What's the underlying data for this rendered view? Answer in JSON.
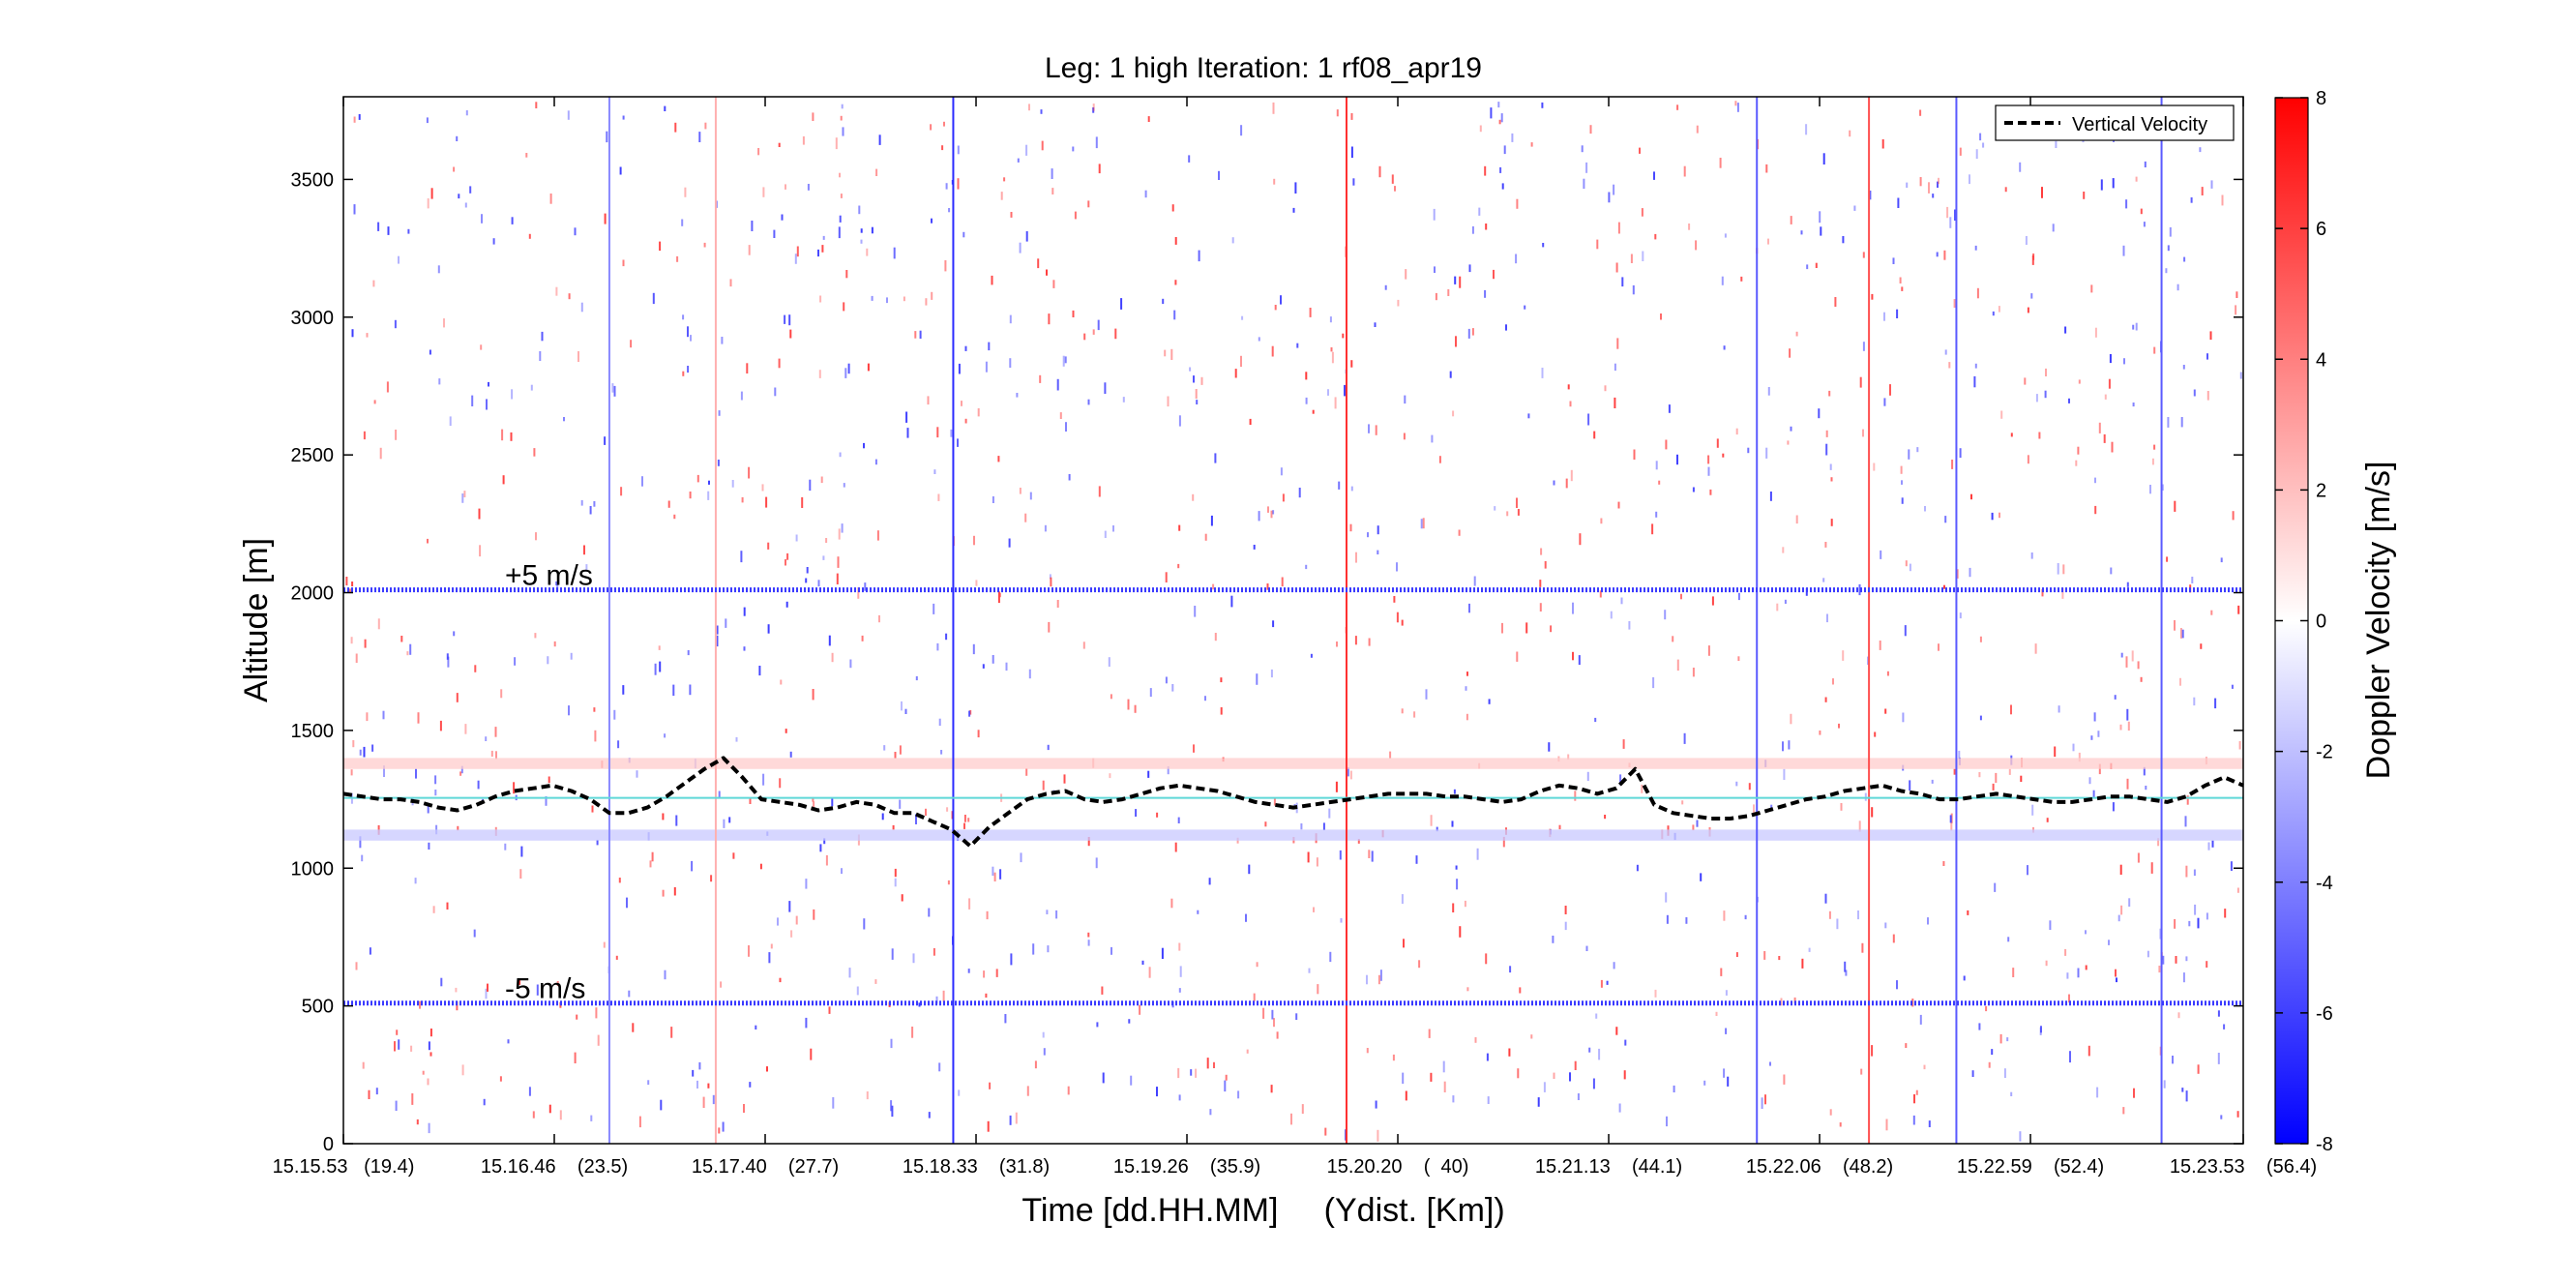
{
  "chart_data": {
    "type": "heatmap",
    "title": "Leg: 1 high Iteration: 1  rf08_apr19",
    "xlabel": "Time [dd.HH.MM]     (Ydist. [Km])",
    "ylabel": "Altitude [m]",
    "colorbar_label": "Doppler Velocity [m/s]",
    "ylim": [
      0,
      3800
    ],
    "xlim": [
      0,
      100
    ],
    "clim": [
      -8,
      8
    ],
    "colormap": {
      "low": "#0000ff",
      "mid": "#ffffff",
      "high": "#ff0000"
    },
    "yticks": [
      0,
      500,
      1000,
      1500,
      2000,
      2500,
      3000,
      3500
    ],
    "cticks": [
      -8,
      -6,
      -4,
      -2,
      0,
      2,
      4,
      6,
      8
    ],
    "xticks": [
      {
        "pos": 0,
        "label": "15.15.53   (19.4)"
      },
      {
        "pos": 11.1,
        "label": "15.16.46    (23.5)"
      },
      {
        "pos": 22.2,
        "label": "15.17.40    (27.7)"
      },
      {
        "pos": 33.3,
        "label": "15.18.33    (31.8)"
      },
      {
        "pos": 44.4,
        "label": "15.19.26    (35.9)"
      },
      {
        "pos": 55.5,
        "label": "15.20.20    (  40)"
      },
      {
        "pos": 66.6,
        "label": "15.21.13    (44.1)"
      },
      {
        "pos": 77.7,
        "label": "15.22.06    (48.2)"
      },
      {
        "pos": 88.8,
        "label": "15.22.59    (52.4)"
      },
      {
        "pos": 100,
        "label": "15.23.53    (56.4)"
      }
    ],
    "legend": {
      "placement": "top-right",
      "entries": [
        "Vertical Velocity"
      ]
    },
    "annotations": [
      {
        "text": "+5 m/s",
        "altitude": 2000
      },
      {
        "text": "-5 m/s",
        "altitude": 500
      }
    ],
    "reference_lines": [
      {
        "altitude": 2010,
        "color": "#3a3aff",
        "style": "dotted"
      },
      {
        "altitude": 510,
        "color": "#3a3aff",
        "style": "dotted"
      },
      {
        "altitude": 1255,
        "color": "#5fd8d8",
        "style": "solid"
      }
    ],
    "vertical_lines": [
      {
        "x": 14.0,
        "color": "#8a8aff"
      },
      {
        "x": 19.6,
        "color": "#ffb0b0"
      },
      {
        "x": 32.1,
        "color": "#2b2bff"
      },
      {
        "x": 52.8,
        "color": "#ff3030"
      },
      {
        "x": 74.4,
        "color": "#5a5aff"
      },
      {
        "x": 80.3,
        "color": "#ff5050"
      },
      {
        "x": 84.9,
        "color": "#5a5aff"
      },
      {
        "x": 95.7,
        "color": "#5a5aff"
      }
    ],
    "bands": [
      {
        "altitude_min": 1360,
        "altitude_max": 1400,
        "color": "#ffcccc"
      },
      {
        "altitude_min": 1100,
        "altitude_max": 1140,
        "color": "#c8c8ff"
      }
    ],
    "series": [
      {
        "name": "Vertical Velocity",
        "x": [
          0,
          1,
          2,
          3,
          4,
          5,
          6,
          7,
          8,
          9,
          10,
          11,
          12,
          13,
          14,
          15,
          16,
          17,
          18,
          19,
          20,
          21,
          22,
          23,
          24,
          25,
          26,
          27,
          28,
          29,
          30,
          31,
          32,
          33,
          34,
          35,
          36,
          37,
          38,
          39,
          40,
          41,
          42,
          43,
          44,
          45,
          46,
          47,
          48,
          49,
          50,
          51,
          52,
          53,
          54,
          55,
          56,
          57,
          58,
          59,
          60,
          61,
          62,
          63,
          64,
          65,
          66,
          67,
          68,
          69,
          70,
          71,
          72,
          73,
          74,
          75,
          76,
          77,
          78,
          79,
          80,
          81,
          82,
          83,
          84,
          85,
          86,
          87,
          88,
          89,
          90,
          91,
          92,
          93,
          94,
          95,
          96,
          97,
          98,
          99,
          100
        ],
        "values": [
          1270,
          1260,
          1250,
          1250,
          1240,
          1220,
          1210,
          1230,
          1260,
          1280,
          1290,
          1300,
          1280,
          1250,
          1200,
          1200,
          1220,
          1260,
          1310,
          1360,
          1400,
          1330,
          1250,
          1240,
          1230,
          1210,
          1220,
          1240,
          1230,
          1200,
          1200,
          1170,
          1140,
          1080,
          1150,
          1200,
          1250,
          1270,
          1280,
          1250,
          1240,
          1250,
          1270,
          1290,
          1300,
          1290,
          1280,
          1260,
          1240,
          1230,
          1220,
          1230,
          1240,
          1250,
          1260,
          1270,
          1270,
          1270,
          1260,
          1260,
          1250,
          1240,
          1250,
          1280,
          1300,
          1290,
          1270,
          1290,
          1360,
          1230,
          1200,
          1190,
          1180,
          1180,
          1190,
          1210,
          1230,
          1250,
          1260,
          1280,
          1290,
          1300,
          1280,
          1270,
          1250,
          1250,
          1260,
          1270,
          1260,
          1250,
          1240,
          1240,
          1250,
          1260,
          1260,
          1250,
          1240,
          1260,
          1300,
          1330,
          1300
        ]
      }
    ]
  }
}
